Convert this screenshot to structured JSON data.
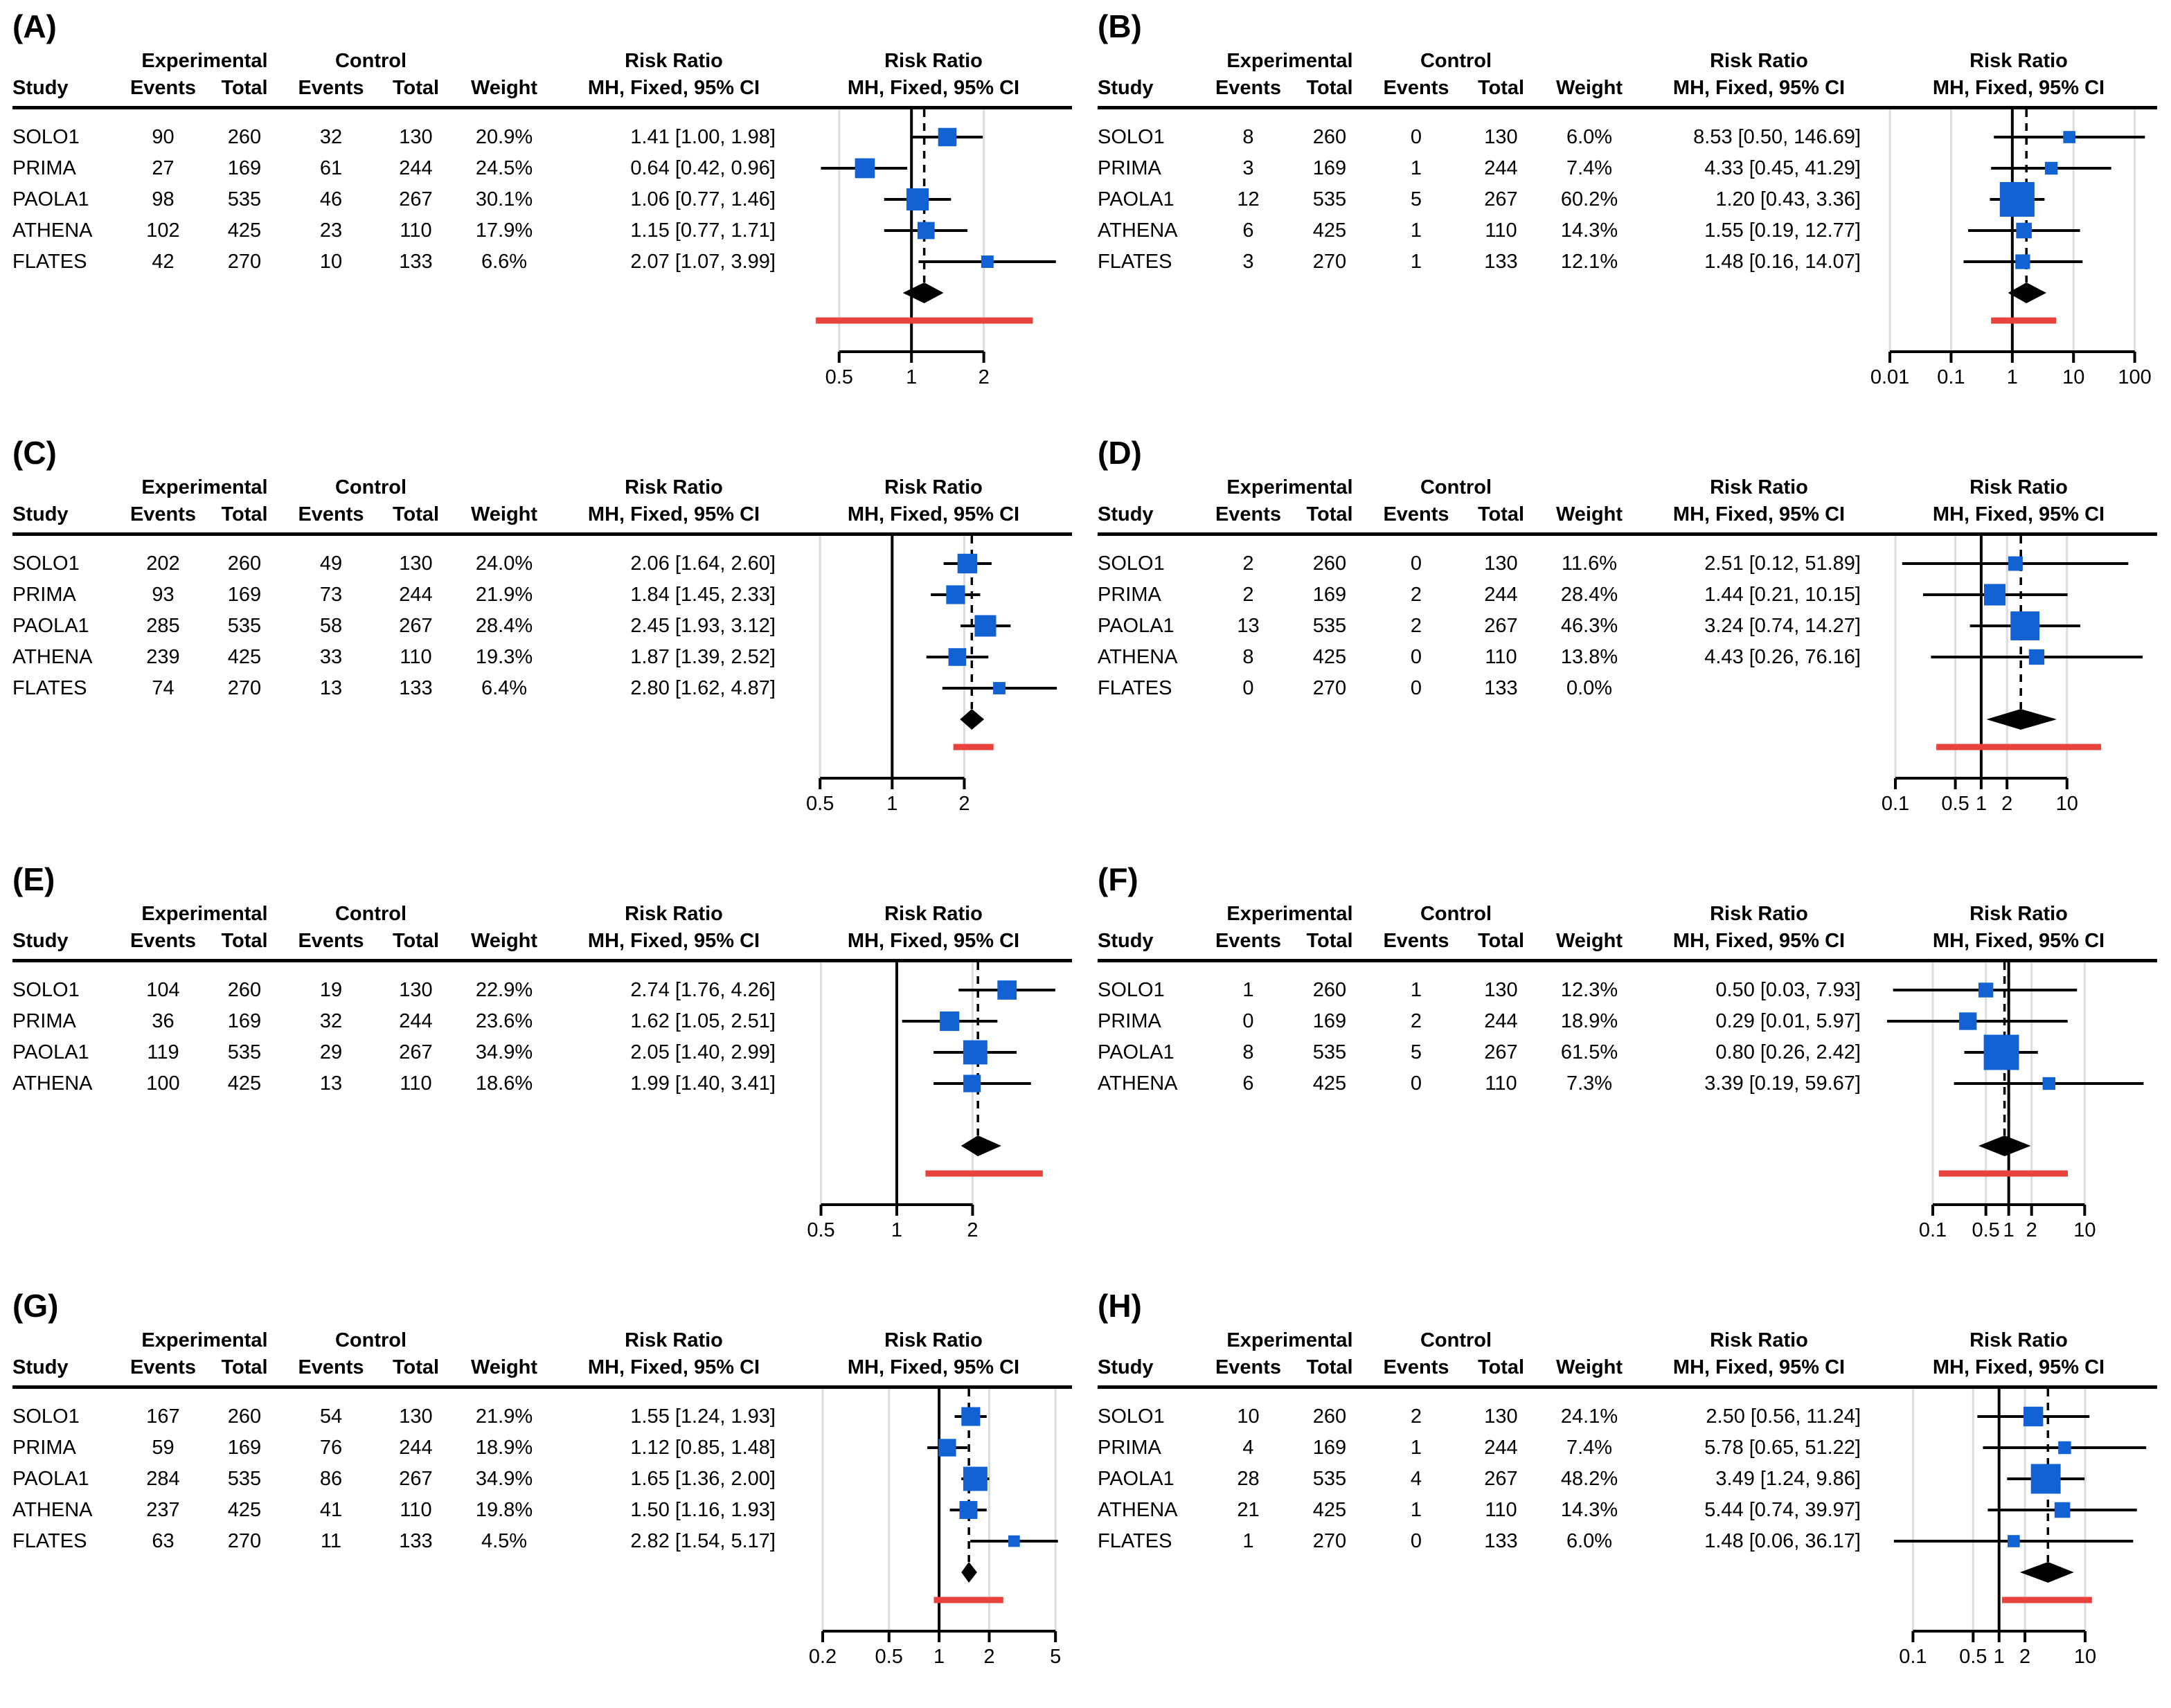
{
  "headers": {
    "experimental": "Experimental",
    "control": "Control",
    "study": "Study",
    "events": "Events",
    "total": "Total",
    "weight": "Weight",
    "risk_ratio": "Risk Ratio",
    "mh_fixed": "MH, Fixed, 95% CI"
  },
  "colors": {
    "square": "#1262d3",
    "diamond": "#000000",
    "prediction_line": "#e9423d",
    "gridline": "#dcdcdc",
    "axis": "#000000"
  },
  "chart_data": [
    {
      "type": "scatter",
      "subtype": "forest-plot",
      "panel_label": "(A)",
      "x_scale": "log",
      "x_range": [
        0.35,
        4.3
      ],
      "x_ticks": [
        0.5,
        1,
        2
      ],
      "x_tick_labels": [
        "0.5",
        "1",
        "2"
      ],
      "studies": [
        {
          "study": "SOLO1",
          "exp_events": "90",
          "exp_total": "260",
          "ctrl_events": "32",
          "ctrl_total": "130",
          "weight": "20.9%",
          "weight_pct": 20.9,
          "rr_text": "1.41 [1.00, 1.98]",
          "rr": 1.41,
          "ci_low": 1.0,
          "ci_high": 1.98
        },
        {
          "study": "PRIMA",
          "exp_events": "27",
          "exp_total": "169",
          "ctrl_events": "61",
          "ctrl_total": "244",
          "weight": "24.5%",
          "weight_pct": 24.5,
          "rr_text": "0.64 [0.42, 0.96]",
          "rr": 0.64,
          "ci_low": 0.42,
          "ci_high": 0.96
        },
        {
          "study": "PAOLA1",
          "exp_events": "98",
          "exp_total": "535",
          "ctrl_events": "46",
          "ctrl_total": "267",
          "weight": "30.1%",
          "weight_pct": 30.1,
          "rr_text": "1.06 [0.77, 1.46]",
          "rr": 1.06,
          "ci_low": 0.77,
          "ci_high": 1.46
        },
        {
          "study": "ATHENA",
          "exp_events": "102",
          "exp_total": "425",
          "ctrl_events": "23",
          "ctrl_total": "110",
          "weight": "17.9%",
          "weight_pct": 17.9,
          "rr_text": "1.15 [0.77, 1.71]",
          "rr": 1.15,
          "ci_low": 0.77,
          "ci_high": 1.71
        },
        {
          "study": "FLATES",
          "exp_events": "42",
          "exp_total": "270",
          "ctrl_events": "10",
          "ctrl_total": "133",
          "weight": "6.6%",
          "weight_pct": 6.6,
          "rr_text": "2.07 [1.07, 3.99]",
          "rr": 2.07,
          "ci_low": 1.07,
          "ci_high": 3.99
        }
      ],
      "pooled": {
        "rr": 1.13,
        "ci_low": 0.92,
        "ci_high": 1.36
      },
      "prediction_interval": [
        0.4,
        3.2
      ]
    },
    {
      "type": "scatter",
      "subtype": "forest-plot",
      "panel_label": "(B)",
      "x_scale": "log",
      "x_range": [
        0.009,
        170
      ],
      "x_ticks": [
        0.01,
        0.1,
        1,
        10,
        100
      ],
      "x_tick_labels": [
        "0.01",
        "0.1",
        "1",
        "10",
        "100"
      ],
      "studies": [
        {
          "study": "SOLO1",
          "exp_events": "8",
          "exp_total": "260",
          "ctrl_events": "0",
          "ctrl_total": "130",
          "weight": "6.0%",
          "weight_pct": 6.0,
          "rr_text": "8.53 [0.50, 146.69]",
          "rr": 8.53,
          "ci_low": 0.5,
          "ci_high": 146.69
        },
        {
          "study": "PRIMA",
          "exp_events": "3",
          "exp_total": "169",
          "ctrl_events": "1",
          "ctrl_total": "244",
          "weight": "7.4%",
          "weight_pct": 7.4,
          "rr_text": "4.33 [0.45, 41.29]",
          "rr": 4.33,
          "ci_low": 0.45,
          "ci_high": 41.29
        },
        {
          "study": "PAOLA1",
          "exp_events": "12",
          "exp_total": "535",
          "ctrl_events": "5",
          "ctrl_total": "267",
          "weight": "60.2%",
          "weight_pct": 60.2,
          "rr_text": "1.20 [0.43, 3.36]",
          "rr": 1.2,
          "ci_low": 0.43,
          "ci_high": 3.36
        },
        {
          "study": "ATHENA",
          "exp_events": "6",
          "exp_total": "425",
          "ctrl_events": "1",
          "ctrl_total": "110",
          "weight": "14.3%",
          "weight_pct": 14.3,
          "rr_text": "1.55 [0.19, 12.77]",
          "rr": 1.55,
          "ci_low": 0.19,
          "ci_high": 12.77
        },
        {
          "study": "FLATES",
          "exp_events": "3",
          "exp_total": "270",
          "ctrl_events": "1",
          "ctrl_total": "133",
          "weight": "12.1%",
          "weight_pct": 12.1,
          "rr_text": "1.48 [0.16, 14.07]",
          "rr": 1.48,
          "ci_low": 0.16,
          "ci_high": 14.07
        }
      ],
      "pooled": {
        "rr": 1.7,
        "ci_low": 0.85,
        "ci_high": 3.6
      },
      "prediction_interval": [
        0.45,
        5.2
      ]
    },
    {
      "type": "scatter",
      "subtype": "forest-plot",
      "panel_label": "(C)",
      "x_scale": "log",
      "x_range": [
        0.42,
        5.2
      ],
      "x_ticks": [
        0.5,
        1,
        2
      ],
      "x_tick_labels": [
        "0.5",
        "1",
        "2"
      ],
      "studies": [
        {
          "study": "SOLO1",
          "exp_events": "202",
          "exp_total": "260",
          "ctrl_events": "49",
          "ctrl_total": "130",
          "weight": "24.0%",
          "weight_pct": 24.0,
          "rr_text": "2.06 [1.64, 2.60]",
          "rr": 2.06,
          "ci_low": 1.64,
          "ci_high": 2.6
        },
        {
          "study": "PRIMA",
          "exp_events": "93",
          "exp_total": "169",
          "ctrl_events": "73",
          "ctrl_total": "244",
          "weight": "21.9%",
          "weight_pct": 21.9,
          "rr_text": "1.84 [1.45, 2.33]",
          "rr": 1.84,
          "ci_low": 1.45,
          "ci_high": 2.33
        },
        {
          "study": "PAOLA1",
          "exp_events": "285",
          "exp_total": "535",
          "ctrl_events": "58",
          "ctrl_total": "267",
          "weight": "28.4%",
          "weight_pct": 28.4,
          "rr_text": "2.45 [1.93, 3.12]",
          "rr": 2.45,
          "ci_low": 1.93,
          "ci_high": 3.12
        },
        {
          "study": "ATHENA",
          "exp_events": "239",
          "exp_total": "425",
          "ctrl_events": "33",
          "ctrl_total": "110",
          "weight": "19.3%",
          "weight_pct": 19.3,
          "rr_text": "1.87 [1.39, 2.52]",
          "rr": 1.87,
          "ci_low": 1.39,
          "ci_high": 2.52
        },
        {
          "study": "FLATES",
          "exp_events": "74",
          "exp_total": "270",
          "ctrl_events": "13",
          "ctrl_total": "133",
          "weight": "6.4%",
          "weight_pct": 6.4,
          "rr_text": "2.80 [1.62, 4.87]",
          "rr": 2.8,
          "ci_low": 1.62,
          "ci_high": 4.87
        }
      ],
      "pooled": {
        "rr": 2.15,
        "ci_low": 1.92,
        "ci_high": 2.42
      },
      "prediction_interval": [
        1.8,
        2.65
      ]
    },
    {
      "type": "scatter",
      "subtype": "forest-plot",
      "panel_label": "(D)",
      "x_scale": "log",
      "x_range": [
        0.08,
        90
      ],
      "x_ticks": [
        0.1,
        0.5,
        1,
        2,
        10
      ],
      "x_tick_labels": [
        "0.1",
        "0.5",
        "1",
        "2",
        "10"
      ],
      "studies": [
        {
          "study": "SOLO1",
          "exp_events": "2",
          "exp_total": "260",
          "ctrl_events": "0",
          "ctrl_total": "130",
          "weight": "11.6%",
          "weight_pct": 11.6,
          "rr_text": "2.51 [0.12, 51.89]",
          "rr": 2.51,
          "ci_low": 0.12,
          "ci_high": 51.89
        },
        {
          "study": "PRIMA",
          "exp_events": "2",
          "exp_total": "169",
          "ctrl_events": "2",
          "ctrl_total": "244",
          "weight": "28.4%",
          "weight_pct": 28.4,
          "rr_text": "1.44 [0.21, 10.15]",
          "rr": 1.44,
          "ci_low": 0.21,
          "ci_high": 10.15
        },
        {
          "study": "PAOLA1",
          "exp_events": "13",
          "exp_total": "535",
          "ctrl_events": "2",
          "ctrl_total": "267",
          "weight": "46.3%",
          "weight_pct": 46.3,
          "rr_text": "3.24 [0.74, 14.27]",
          "rr": 3.24,
          "ci_low": 0.74,
          "ci_high": 14.27
        },
        {
          "study": "ATHENA",
          "exp_events": "8",
          "exp_total": "425",
          "ctrl_events": "0",
          "ctrl_total": "110",
          "weight": "13.8%",
          "weight_pct": 13.8,
          "rr_text": "4.43 [0.26, 76.16]",
          "rr": 4.43,
          "ci_low": 0.26,
          "ci_high": 76.16
        },
        {
          "study": "FLATES",
          "exp_events": "0",
          "exp_total": "270",
          "ctrl_events": "0",
          "ctrl_total": "133",
          "weight": "0.0%",
          "weight_pct": 0.0,
          "rr_text": "",
          "rr": null,
          "ci_low": null,
          "ci_high": null
        }
      ],
      "pooled": {
        "rr": 2.9,
        "ci_low": 1.15,
        "ci_high": 7.6
      },
      "prediction_interval": [
        0.3,
        25.0
      ]
    },
    {
      "type": "scatter",
      "subtype": "forest-plot",
      "panel_label": "(E)",
      "x_scale": "log",
      "x_range": [
        0.42,
        4.6
      ],
      "x_ticks": [
        0.5,
        1,
        2
      ],
      "x_tick_labels": [
        "0.5",
        "1",
        "2"
      ],
      "studies": [
        {
          "study": "SOLO1",
          "exp_events": "104",
          "exp_total": "260",
          "ctrl_events": "19",
          "ctrl_total": "130",
          "weight": "22.9%",
          "weight_pct": 22.9,
          "rr_text": "2.74 [1.76, 4.26]",
          "rr": 2.74,
          "ci_low": 1.76,
          "ci_high": 4.26
        },
        {
          "study": "PRIMA",
          "exp_events": "36",
          "exp_total": "169",
          "ctrl_events": "32",
          "ctrl_total": "244",
          "weight": "23.6%",
          "weight_pct": 23.6,
          "rr_text": "1.62 [1.05, 2.51]",
          "rr": 1.62,
          "ci_low": 1.05,
          "ci_high": 2.51
        },
        {
          "study": "PAOLA1",
          "exp_events": "119",
          "exp_total": "535",
          "ctrl_events": "29",
          "ctrl_total": "267",
          "weight": "34.9%",
          "weight_pct": 34.9,
          "rr_text": "2.05 [1.40, 2.99]",
          "rr": 2.05,
          "ci_low": 1.4,
          "ci_high": 2.99
        },
        {
          "study": "ATHENA",
          "exp_events": "100",
          "exp_total": "425",
          "ctrl_events": "13",
          "ctrl_total": "110",
          "weight": "18.6%",
          "weight_pct": 18.6,
          "rr_text": "1.99 [1.40, 3.41]",
          "rr": 1.99,
          "ci_low": 1.4,
          "ci_high": 3.41
        }
      ],
      "pooled": {
        "rr": 2.1,
        "ci_low": 1.8,
        "ci_high": 2.6
      },
      "prediction_interval": [
        1.3,
        3.8
      ]
    },
    {
      "type": "scatter",
      "subtype": "forest-plot",
      "panel_label": "(F)",
      "x_scale": "log",
      "x_range": [
        0.025,
        70
      ],
      "x_ticks": [
        0.1,
        0.5,
        1,
        2,
        10
      ],
      "x_tick_labels": [
        "0.1",
        "0.5",
        "1",
        "2",
        "10"
      ],
      "studies": [
        {
          "study": "SOLO1",
          "exp_events": "1",
          "exp_total": "260",
          "ctrl_events": "1",
          "ctrl_total": "130",
          "weight": "12.3%",
          "weight_pct": 12.3,
          "rr_text": "0.50 [0.03, 7.93]",
          "rr": 0.5,
          "ci_low": 0.03,
          "ci_high": 7.93
        },
        {
          "study": "PRIMA",
          "exp_events": "0",
          "exp_total": "169",
          "ctrl_events": "2",
          "ctrl_total": "244",
          "weight": "18.9%",
          "weight_pct": 18.9,
          "rr_text": "0.29 [0.01, 5.97]",
          "rr": 0.29,
          "ci_low": 0.01,
          "ci_high": 5.97
        },
        {
          "study": "PAOLA1",
          "exp_events": "8",
          "exp_total": "535",
          "ctrl_events": "5",
          "ctrl_total": "267",
          "weight": "61.5%",
          "weight_pct": 61.5,
          "rr_text": "0.80 [0.26, 2.42]",
          "rr": 0.8,
          "ci_low": 0.26,
          "ci_high": 2.42
        },
        {
          "study": "ATHENA",
          "exp_events": "6",
          "exp_total": "425",
          "ctrl_events": "0",
          "ctrl_total": "110",
          "weight": "7.3%",
          "weight_pct": 7.3,
          "rr_text": "3.39 [0.19, 59.67]",
          "rr": 3.39,
          "ci_low": 0.19,
          "ci_high": 59.67
        }
      ],
      "pooled": {
        "rr": 0.88,
        "ci_low": 0.4,
        "ci_high": 1.95
      },
      "prediction_interval": [
        0.12,
        6.0
      ]
    },
    {
      "type": "scatter",
      "subtype": "forest-plot",
      "panel_label": "(G)",
      "x_scale": "log",
      "x_range": [
        0.15,
        5.6
      ],
      "x_ticks": [
        0.2,
        0.5,
        1,
        2,
        5
      ],
      "x_tick_labels": [
        "0.2",
        "0.5",
        "1",
        "2",
        "5"
      ],
      "studies": [
        {
          "study": "SOLO1",
          "exp_events": "167",
          "exp_total": "260",
          "ctrl_events": "54",
          "ctrl_total": "130",
          "weight": "21.9%",
          "weight_pct": 21.9,
          "rr_text": "1.55 [1.24, 1.93]",
          "rr": 1.55,
          "ci_low": 1.24,
          "ci_high": 1.93
        },
        {
          "study": "PRIMA",
          "exp_events": "59",
          "exp_total": "169",
          "ctrl_events": "76",
          "ctrl_total": "244",
          "weight": "18.9%",
          "weight_pct": 18.9,
          "rr_text": "1.12 [0.85, 1.48]",
          "rr": 1.12,
          "ci_low": 0.85,
          "ci_high": 1.48
        },
        {
          "study": "PAOLA1",
          "exp_events": "284",
          "exp_total": "535",
          "ctrl_events": "86",
          "ctrl_total": "267",
          "weight": "34.9%",
          "weight_pct": 34.9,
          "rr_text": "1.65 [1.36, 2.00]",
          "rr": 1.65,
          "ci_low": 1.36,
          "ci_high": 2.0
        },
        {
          "study": "ATHENA",
          "exp_events": "237",
          "exp_total": "425",
          "ctrl_events": "41",
          "ctrl_total": "110",
          "weight": "19.8%",
          "weight_pct": 19.8,
          "rr_text": "1.50 [1.16, 1.93]",
          "rr": 1.5,
          "ci_low": 1.16,
          "ci_high": 1.93
        },
        {
          "study": "FLATES",
          "exp_events": "63",
          "exp_total": "270",
          "ctrl_events": "11",
          "ctrl_total": "133",
          "weight": "4.5%",
          "weight_pct": 4.5,
          "rr_text": "2.82 [1.54, 5.17]",
          "rr": 2.82,
          "ci_low": 1.54,
          "ci_high": 5.17
        }
      ],
      "pooled": {
        "rr": 1.51,
        "ci_low": 1.36,
        "ci_high": 1.69
      },
      "prediction_interval": [
        0.93,
        2.43
      ]
    },
    {
      "type": "scatter",
      "subtype": "forest-plot",
      "panel_label": "(H)",
      "x_scale": "log",
      "x_range": [
        0.05,
        55
      ],
      "x_ticks": [
        0.1,
        0.5,
        1,
        2,
        10
      ],
      "x_tick_labels": [
        "0.1",
        "0.5",
        "1",
        "2",
        "10"
      ],
      "studies": [
        {
          "study": "SOLO1",
          "exp_events": "10",
          "exp_total": "260",
          "ctrl_events": "2",
          "ctrl_total": "130",
          "weight": "24.1%",
          "weight_pct": 24.1,
          "rr_text": "2.50 [0.56, 11.24]",
          "rr": 2.5,
          "ci_low": 0.56,
          "ci_high": 11.24
        },
        {
          "study": "PRIMA",
          "exp_events": "4",
          "exp_total": "169",
          "ctrl_events": "1",
          "ctrl_total": "244",
          "weight": "7.4%",
          "weight_pct": 7.4,
          "rr_text": "5.78 [0.65, 51.22]",
          "rr": 5.78,
          "ci_low": 0.65,
          "ci_high": 51.22
        },
        {
          "study": "PAOLA1",
          "exp_events": "28",
          "exp_total": "535",
          "ctrl_events": "4",
          "ctrl_total": "267",
          "weight": "48.2%",
          "weight_pct": 48.2,
          "rr_text": "3.49 [1.24, 9.86]",
          "rr": 3.49,
          "ci_low": 1.24,
          "ci_high": 9.86
        },
        {
          "study": "ATHENA",
          "exp_events": "21",
          "exp_total": "425",
          "ctrl_events": "1",
          "ctrl_total": "110",
          "weight": "14.3%",
          "weight_pct": 14.3,
          "rr_text": "5.44 [0.74, 39.97]",
          "rr": 5.44,
          "ci_low": 0.74,
          "ci_high": 39.97
        },
        {
          "study": "FLATES",
          "exp_events": "1",
          "exp_total": "270",
          "ctrl_events": "0",
          "ctrl_total": "133",
          "weight": "6.0%",
          "weight_pct": 6.0,
          "rr_text": "1.48 [0.06, 36.17]",
          "rr": 1.48,
          "ci_low": 0.06,
          "ci_high": 36.17
        }
      ],
      "pooled": {
        "rr": 3.7,
        "ci_low": 1.75,
        "ci_high": 7.4
      },
      "prediction_interval": [
        1.08,
        12.0
      ]
    }
  ]
}
